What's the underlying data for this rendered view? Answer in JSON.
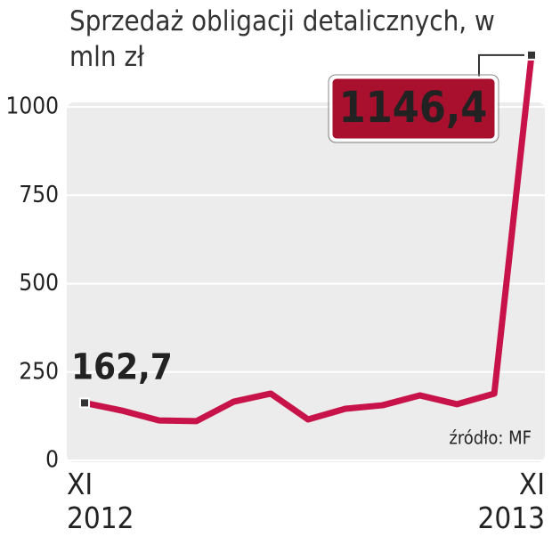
{
  "chart_data": {
    "type": "line",
    "title": "Sprzedaż obligacji detalicznych, w mln zł",
    "source": "źródło: MF",
    "categories": [
      "XI 2012",
      null,
      null,
      null,
      null,
      null,
      null,
      null,
      null,
      null,
      null,
      null,
      "XI 2013"
    ],
    "series": [
      {
        "name": "Sprzedaż",
        "color": "#c8124a",
        "values": [
          162.7,
          141,
          113,
          111,
          166,
          189,
          116,
          146,
          156,
          184,
          159,
          189,
          1146.4
        ],
        "value_labels": [
          "162,7",
          null,
          null,
          null,
          null,
          null,
          null,
          null,
          null,
          null,
          null,
          null,
          "1146,4"
        ]
      }
    ],
    "ylim": [
      0,
      1000
    ],
    "yticks": [
      0,
      250,
      500,
      750,
      1000
    ],
    "grid": true
  }
}
